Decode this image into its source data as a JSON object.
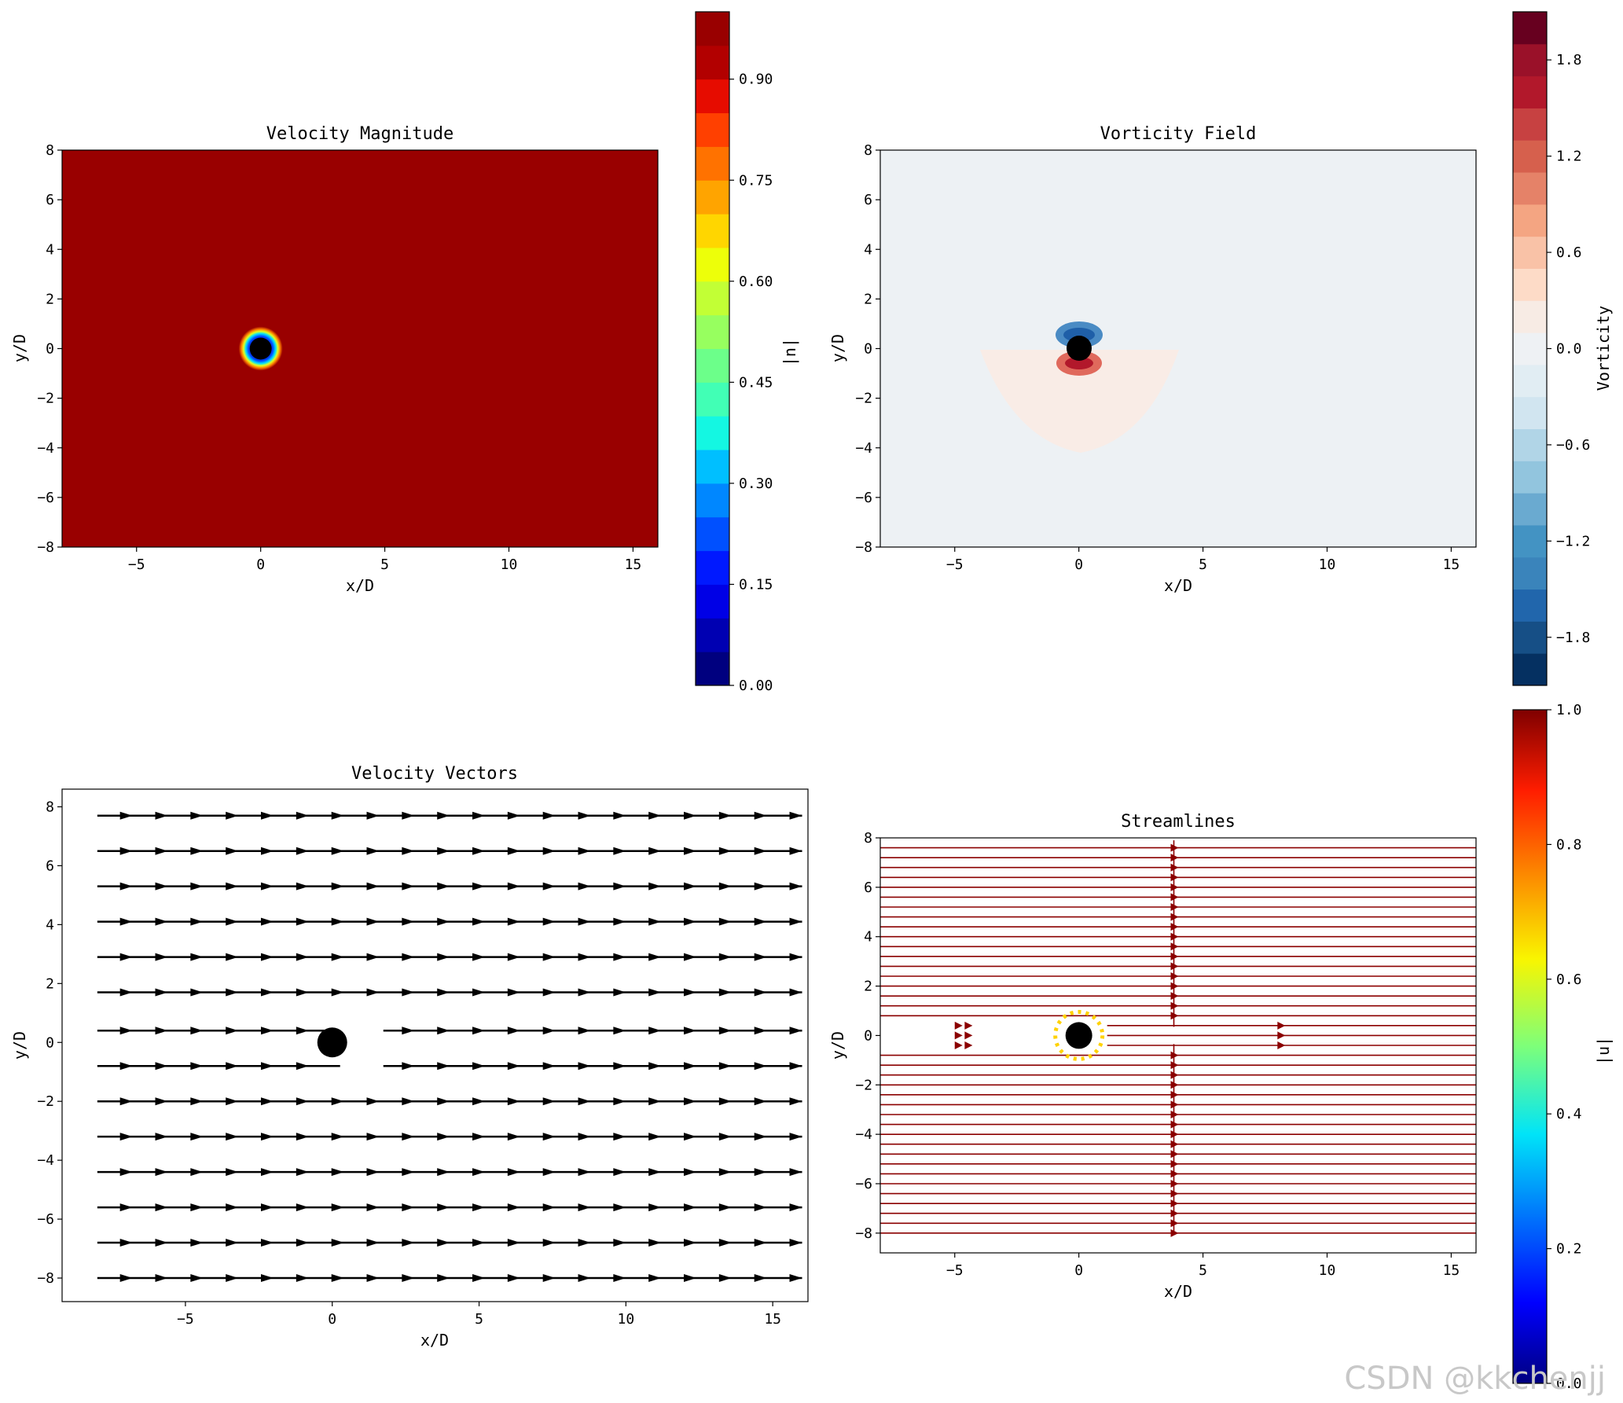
{
  "watermark": "CSDN @kkchenjj",
  "colors": {
    "red_field": "#990000",
    "vort_bg": "#edf1f4",
    "arrow": "#000000",
    "stream": "#8b0000"
  },
  "chart_data": [
    {
      "type": "heatmap",
      "title": "Velocity Magnitude",
      "xlabel": "x/D",
      "ylabel": "y/D",
      "xlim": [
        -8,
        16
      ],
      "ylim": [
        -8,
        8
      ],
      "xticks": [
        -5,
        0,
        5,
        10,
        15
      ],
      "yticks": [
        -8,
        -6,
        -4,
        -2,
        0,
        2,
        4,
        6,
        8
      ],
      "cylinder": {
        "x": 0,
        "y": 0,
        "radius": 0.5
      },
      "colormap": "jet",
      "colorbar": {
        "label": "|u|",
        "min": 0.0,
        "max": 1.0,
        "levels": 20,
        "ticks": [
          "0.00",
          "0.15",
          "0.30",
          "0.45",
          "0.60",
          "0.75",
          "0.90"
        ]
      }
    },
    {
      "type": "heatmap",
      "title": "Vorticity Field",
      "xlabel": "x/D",
      "ylabel": "y/D",
      "xlim": [
        -8,
        16
      ],
      "ylim": [
        -8,
        8
      ],
      "xticks": [
        -5,
        0,
        5,
        10,
        15
      ],
      "yticks": [
        -8,
        -6,
        -4,
        -2,
        0,
        2,
        4,
        6,
        8
      ],
      "cylinder": {
        "x": 0,
        "y": 0,
        "radius": 0.5
      },
      "colormap": "RdBu_r",
      "colorbar": {
        "label": "Vorticity",
        "min": -2.1,
        "max": 2.1,
        "levels": 21,
        "ticks": [
          "−1.8",
          "−1.2",
          "−0.6",
          "0.0",
          "0.6",
          "1.2",
          "1.8"
        ]
      }
    },
    {
      "type": "scatter",
      "title": "Velocity Vectors",
      "xlabel": "x/D",
      "ylabel": "y/D",
      "xlim": [
        -9.2,
        16.2
      ],
      "ylim": [
        -8.8,
        8.6
      ],
      "xticks": [
        -5,
        0,
        5,
        10,
        15
      ],
      "yticks": [
        -8,
        -6,
        -4,
        -2,
        0,
        2,
        4,
        6,
        8
      ],
      "rows_y": [
        -8,
        -6.8,
        -5.6,
        -4.4,
        -3.2,
        -2,
        -0.8,
        0.4,
        1.7,
        2.9,
        4.1,
        5.3,
        6.5,
        7.7
      ],
      "arrow_x_start": -8,
      "arrow_x_end": 16,
      "arrow_spacing": 1.2,
      "cylinder": {
        "x": 0,
        "y": 0,
        "radius": 0.5
      }
    },
    {
      "type": "line",
      "title": "Streamlines",
      "xlabel": "x/D",
      "ylabel": "y/D",
      "xlim": [
        -8,
        16
      ],
      "ylim": [
        -8.8,
        8
      ],
      "xticks": [
        -5,
        0,
        5,
        10,
        15
      ],
      "yticks": [
        -8,
        -6,
        -4,
        -2,
        0,
        2,
        4,
        6,
        8
      ],
      "stream_spacing": 0.4,
      "arrow_x": 3.7,
      "cylinder": {
        "x": 0,
        "y": 0,
        "radius": 0.5
      },
      "colormap": "jet",
      "colorbar": {
        "label": "|u|",
        "min": 0.0,
        "max": 1.0,
        "ticks": [
          "0.0",
          "0.2",
          "0.4",
          "0.6",
          "0.8",
          "1.0"
        ]
      }
    }
  ]
}
